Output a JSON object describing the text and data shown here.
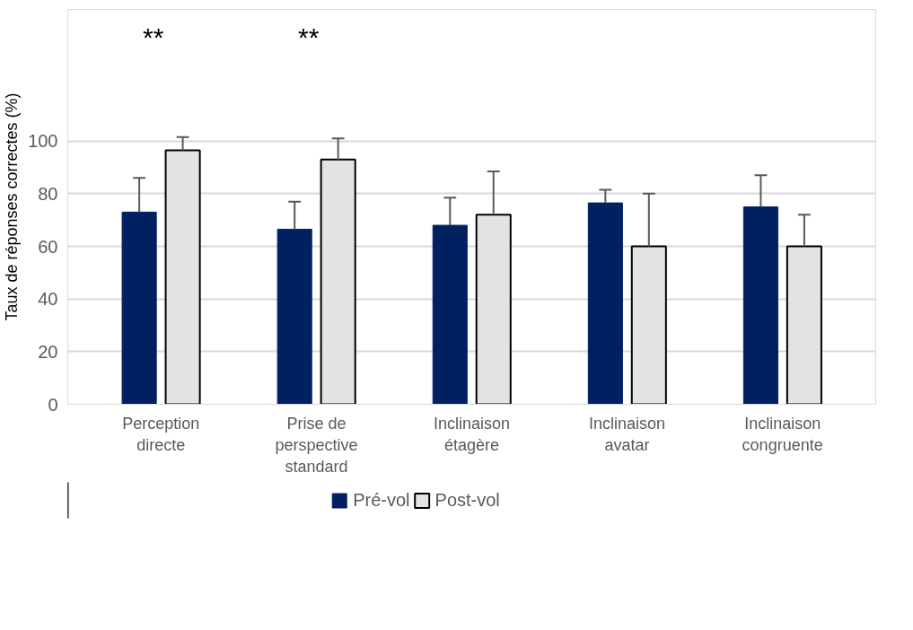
{
  "chart_data": {
    "type": "bar",
    "categories": [
      "Perception\ndirecte",
      "Prise de\nperspective\nstandard",
      "Inclinaison\nétagère",
      "Inclinaison\navatar",
      "Inclinaison\ncongruente"
    ],
    "ylabel": "Taux de réponses correctes (%)",
    "series": [
      {
        "name": "Pré-vol",
        "color": "#002060",
        "values": [
          73,
          66.5,
          68,
          76.5,
          75
        ],
        "errors": [
          [
            73,
            86
          ],
          [
            66.5,
            77
          ],
          [
            68,
            78.5
          ],
          [
            76.5,
            81.5
          ],
          [
            75,
            87
          ]
        ]
      },
      {
        "name": "Post-vol",
        "color": "#e3e3e3",
        "values": [
          96.5,
          93,
          72,
          60,
          60
        ],
        "errors": [
          [
            96.5,
            101.5
          ],
          [
            93,
            101
          ],
          [
            72,
            88.5
          ],
          [
            60,
            80
          ],
          [
            60,
            72
          ]
        ]
      }
    ],
    "ylim": [
      0,
      150
    ],
    "yticks": [
      0,
      20,
      40,
      60,
      80,
      100
    ],
    "annotations": [
      "**",
      "**"
    ],
    "grid": "y",
    "legend": "bottom"
  }
}
